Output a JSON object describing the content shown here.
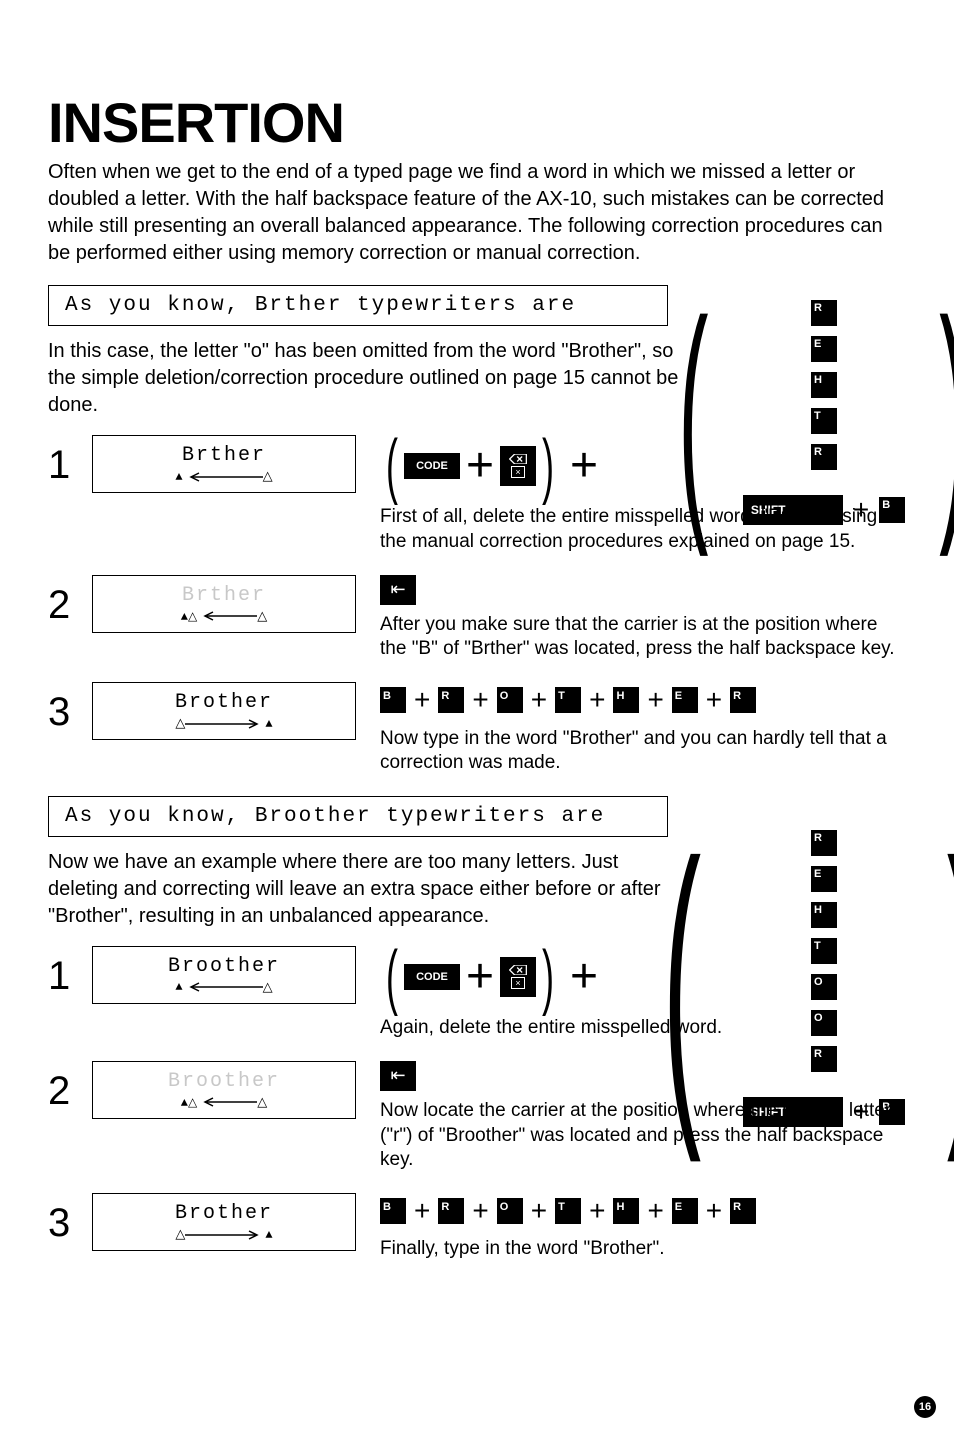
{
  "title": "INSERTION",
  "intro": "Often when we get to the end of a typed page we find a word in which we missed a letter or doubled a letter. With the half backspace feature of the AX-10, such mistakes can be corrected while still presenting an overall balanced appearance. The following correction procedures can be performed either using memory correction or manual correction.",
  "example1": {
    "line": "As you know, Brther typewriters are",
    "explain": "In this case, the letter \"o\" has been omitted from the word \"Brother\", so the simple deletion/correction procedure outlined on page 15 cannot be done.",
    "steps": [
      {
        "num": "1",
        "word": "Brther",
        "ghost": false,
        "arrowDir": "left",
        "startTri": "solid",
        "endTri": "open",
        "desc": "First of all, delete the entire misspelled word, \"Brther\" using the manual correction procedures explained on page 15."
      },
      {
        "num": "2",
        "word": "Brther",
        "ghost": true,
        "arrowDir": "left",
        "startTri": "solidDbl",
        "endTri": "open",
        "desc": "After you make sure that the carrier is at the position where the \"B\" of \"Brther\" was located, press the half backspace key."
      },
      {
        "num": "3",
        "word": "Brother",
        "ghost": false,
        "arrowDir": "right",
        "startTri": "open",
        "endTri": "solid",
        "desc": "Now type in the word \"Brother\" and you can hardly tell that a correction was made."
      }
    ],
    "bigStack": [
      "R",
      "E",
      "H",
      "T",
      "R"
    ],
    "typeSeq": [
      "B",
      "R",
      "O",
      "T",
      "H",
      "E",
      "R"
    ]
  },
  "example2": {
    "line": "As you know, Broother typewriters are",
    "explain": "Now we have an example where there are too many letters. Just deleting and correcting will leave an extra space either before or after \"Brother\", resulting in an unbalanced appearance.",
    "steps": [
      {
        "num": "1",
        "word": "Broother",
        "ghost": false,
        "arrowDir": "left",
        "startTri": "solid",
        "endTri": "open",
        "desc": "Again, delete the entire misspelled word."
      },
      {
        "num": "2",
        "word": "Broother",
        "ghost": true,
        "arrowDir": "left",
        "startTri": "solidDbl",
        "endTri": "open",
        "desc": "Now locate the carrier at the position where the second letter (\"r\") of \"Broother\" was located and press the half backspace key."
      },
      {
        "num": "3",
        "word": "Brother",
        "ghost": false,
        "arrowDir": "right",
        "startTri": "open",
        "endTri": "solid",
        "desc": "Finally, type in the word \"Brother\"."
      }
    ],
    "bigStack": [
      "R",
      "E",
      "H",
      "T",
      "O",
      "O",
      "R"
    ],
    "typeSeq": [
      "B",
      "R",
      "O",
      "T",
      "H",
      "E",
      "R"
    ]
  },
  "labels": {
    "code": "CODE",
    "shift": "SHIFT",
    "pageNum": "16"
  }
}
